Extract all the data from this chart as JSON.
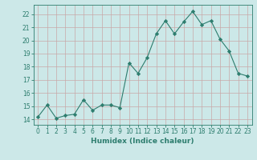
{
  "x": [
    0,
    1,
    2,
    3,
    4,
    5,
    6,
    7,
    8,
    9,
    10,
    11,
    12,
    13,
    14,
    15,
    16,
    17,
    18,
    19,
    20,
    21,
    22,
    23
  ],
  "y": [
    14.2,
    15.1,
    14.1,
    14.3,
    14.4,
    15.5,
    14.7,
    15.1,
    15.1,
    14.9,
    18.3,
    17.5,
    18.7,
    20.5,
    21.5,
    20.5,
    21.4,
    22.2,
    21.2,
    21.5,
    20.1,
    19.2,
    17.5,
    17.3
  ],
  "line_color": "#2d7d6e",
  "marker": "D",
  "marker_size": 2.2,
  "bg_color": "#cce8e8",
  "grid_color": "#b8d4d4",
  "ylabel_ticks": [
    14,
    15,
    16,
    17,
    18,
    19,
    20,
    21,
    22
  ],
  "ylim": [
    13.6,
    22.7
  ],
  "xlim": [
    -0.5,
    23.5
  ],
  "xlabel": "Humidex (Indice chaleur)",
  "axis_color": "#2d7d6e",
  "tick_color": "#2d7d6e",
  "label_color": "#2d7d6e",
  "font_size": 5.5,
  "xlabel_font_size": 6.5
}
